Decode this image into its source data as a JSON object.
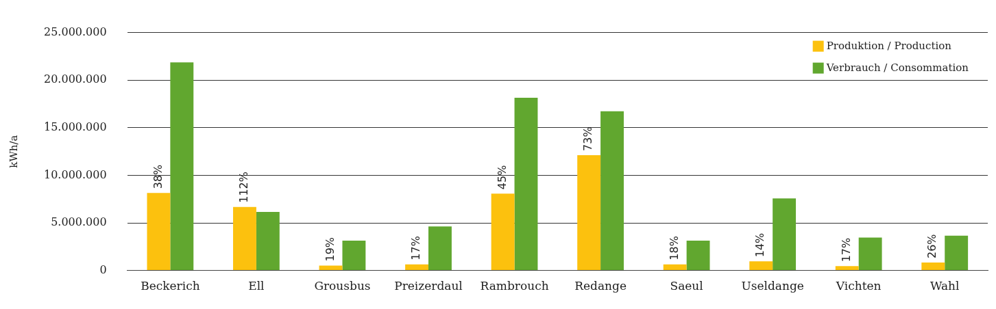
{
  "chart_data": {
    "type": "bar",
    "ylabel": "kWh/a",
    "categories": [
      "Beckerich",
      "Ell",
      "Grousbus",
      "Preizerdaul",
      "Rambrouch",
      "Redange",
      "Saeul",
      "Useldange",
      "Vichten",
      "Wahl"
    ],
    "series": [
      {
        "name": "Produktion / Production",
        "color": "#fcc10e",
        "values": [
          8140000,
          6670000,
          510000,
          640000,
          8080000,
          12120000,
          640000,
          960000,
          450000,
          830000
        ]
      },
      {
        "name": "Verbrauch / Consommation",
        "color": "#61a72f",
        "values": [
          21860000,
          6150000,
          3140000,
          4620000,
          18140000,
          16730000,
          3140000,
          7560000,
          3460000,
          3650000
        ]
      }
    ],
    "ylim": [
      0,
      25000000
    ],
    "yticks": [
      {
        "value": 0,
        "label": "0"
      },
      {
        "value": 5000000,
        "label": "5.000.000"
      },
      {
        "value": 10000000,
        "label": "10.000.000"
      },
      {
        "value": 15000000,
        "label": "15.000.000"
      },
      {
        "value": 20000000,
        "label": "20.000.000"
      },
      {
        "value": 25000000,
        "label": "25.000.000"
      }
    ],
    "annotations": [
      {
        "text": "38%",
        "x": "Beckerich",
        "y": 8140000
      },
      {
        "text": "112%",
        "x": "Ell",
        "y": 6670000
      },
      {
        "text": "19%",
        "x": "Grousbus",
        "y": 510000
      },
      {
        "text": "17%",
        "x": "Preizerdaul",
        "y": 640000
      },
      {
        "text": "45%",
        "x": "Rambrouch",
        "y": 8080000
      },
      {
        "text": "73%",
        "x": "Redange",
        "y": 12120000
      },
      {
        "text": "18%",
        "x": "Saeul",
        "y": 640000
      },
      {
        "text": "14%",
        "x": "Useldange",
        "y": 960000
      },
      {
        "text": "17%",
        "x": "Vichten",
        "y": 450000
      },
      {
        "text": "26%",
        "x": "Wahl",
        "y": 830000
      }
    ],
    "grid": "y",
    "legend": "top right"
  }
}
